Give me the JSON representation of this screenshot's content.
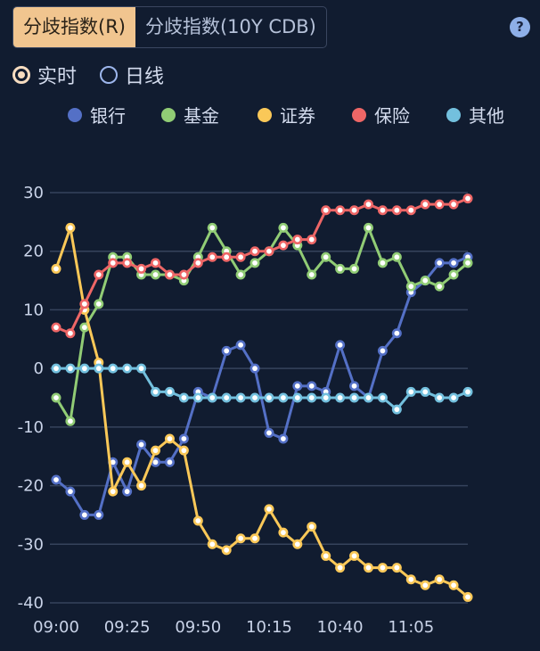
{
  "tabs": [
    {
      "label": "分歧指数(R)",
      "active": true
    },
    {
      "label": "分歧指数(10Y CDB)",
      "active": false
    }
  ],
  "help_icon": {
    "glyph": "?",
    "name": "help-icon"
  },
  "radios": [
    {
      "label": "实时",
      "checked": true
    },
    {
      "label": "日线",
      "checked": false
    }
  ],
  "chart_data": {
    "type": "line",
    "title": "",
    "xlabel": "",
    "ylabel": "",
    "ylim": [
      -40,
      30
    ],
    "yticks": [
      30,
      20,
      10,
      0,
      -10,
      -20,
      -30,
      -40
    ],
    "grid": true,
    "legend_position": "top",
    "x": [
      "09:00",
      "09:05",
      "09:10",
      "09:15",
      "09:20",
      "09:25",
      "09:30",
      "09:35",
      "09:40",
      "09:45",
      "09:50",
      "09:55",
      "10:00",
      "10:05",
      "10:10",
      "10:15",
      "10:20",
      "10:25",
      "10:30",
      "10:35",
      "10:40",
      "10:45",
      "10:50",
      "10:55",
      "11:00",
      "11:05",
      "11:10",
      "11:15",
      "11:20",
      "11:25"
    ],
    "xtick_labels": [
      "09:00",
      "09:25",
      "09:50",
      "10:15",
      "10:40",
      "11:05"
    ],
    "series": [
      {
        "name": "银行",
        "color": "#5470c6",
        "values": [
          -19,
          -21,
          -25,
          -25,
          -16,
          -21,
          -13,
          -16,
          -16,
          -12,
          -4,
          -5,
          3,
          4,
          0,
          -11,
          -12,
          -3,
          -3,
          -4,
          4,
          -3,
          -5,
          3,
          6,
          13,
          15,
          18,
          18,
          19
        ]
      },
      {
        "name": "基金",
        "color": "#91cc75",
        "values": [
          -5,
          -9,
          7,
          11,
          19,
          19,
          16,
          16,
          16,
          15,
          19,
          24,
          20,
          16,
          18,
          20,
          24,
          21,
          16,
          19,
          17,
          17,
          24,
          18,
          19,
          14,
          15,
          14,
          16,
          18
        ]
      },
      {
        "name": "证券",
        "color": "#fac858",
        "values": [
          17,
          24,
          10,
          1,
          -21,
          -16,
          -20,
          -14,
          -12,
          -14,
          -26,
          -30,
          -31,
          -29,
          -29,
          -24,
          -28,
          -30,
          -27,
          -32,
          -34,
          -32,
          -34,
          -34,
          -34,
          -36,
          -37,
          -36,
          -37,
          -39
        ]
      },
      {
        "name": "保险",
        "color": "#ee6666",
        "values": [
          7,
          6,
          11,
          16,
          18,
          18,
          17,
          18,
          16,
          16,
          18,
          19,
          19,
          19,
          20,
          20,
          21,
          22,
          22,
          27,
          27,
          27,
          28,
          27,
          27,
          27,
          28,
          28,
          28,
          29
        ]
      },
      {
        "name": "其他",
        "color": "#73c0de",
        "values": [
          0,
          0,
          0,
          0,
          0,
          0,
          0,
          -4,
          -4,
          -5,
          -5,
          -5,
          -5,
          -5,
          -5,
          -5,
          -5,
          -5,
          -5,
          -5,
          -5,
          -5,
          -5,
          -5,
          -7,
          -4,
          -4,
          -5,
          -5,
          -4
        ]
      }
    ]
  }
}
